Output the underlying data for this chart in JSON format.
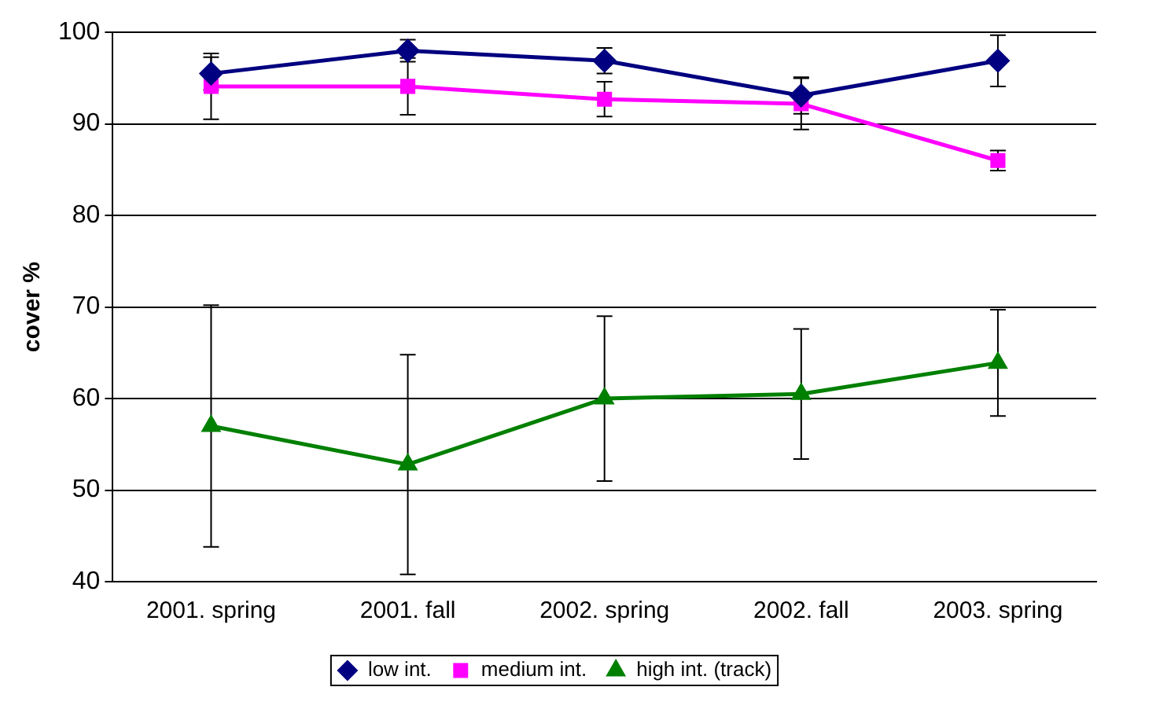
{
  "chart_data": {
    "type": "line",
    "ylabel": "cover %",
    "categories": [
      "2001. spring",
      "2001. fall",
      "2002. spring",
      "2002. fall",
      "2003. spring"
    ],
    "ylim": [
      40,
      100
    ],
    "yticks": [
      40,
      50,
      60,
      70,
      80,
      90,
      100
    ],
    "grid": "y",
    "legend": "bottom",
    "line_style": "solid",
    "series": [
      {
        "name": "low int.",
        "color": "#000080",
        "marker": "diamond",
        "values": [
          95.5,
          98,
          96.9,
          93.1,
          96.9
        ],
        "errors": [
          1.8,
          1.2,
          1.4,
          2,
          2.8
        ]
      },
      {
        "name": "medium int.",
        "color": "#ff00ff",
        "marker": "square",
        "values": [
          94.1,
          94.1,
          92.7,
          92.2,
          86
        ],
        "errors": [
          3.6,
          3.1,
          1.9,
          2.8,
          1.1
        ]
      },
      {
        "name": "high int. (track)",
        "color": "#008000",
        "marker": "triangle",
        "values": [
          57,
          52.8,
          60,
          60.5,
          63.9
        ],
        "errors": [
          13.2,
          12,
          9,
          7.1,
          5.8
        ]
      }
    ]
  }
}
